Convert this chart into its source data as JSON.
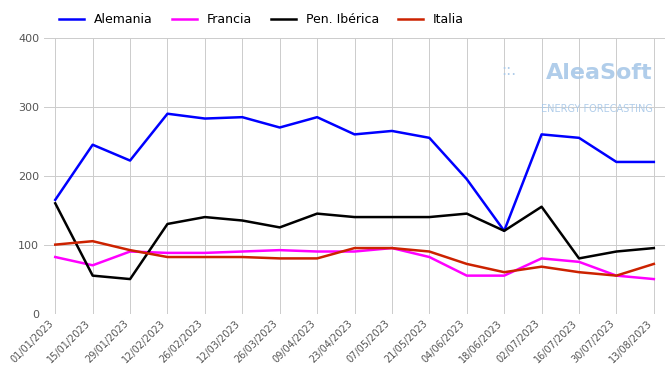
{
  "title": "",
  "legend": [
    "Alemania",
    "Francia",
    "Pen. Ibérica",
    "Italia"
  ],
  "colors": {
    "Alemania": "#0000FF",
    "Francia": "#FF00FF",
    "Pen. Ibérica": "#000000",
    "Italia": "#CC2200"
  },
  "x_labels": [
    "01/01/2023",
    "15/01/2023",
    "29/01/2023",
    "12/02/2023",
    "26/02/2023",
    "12/03/2023",
    "26/03/2023",
    "09/04/2023",
    "23/04/2023",
    "07/05/2023",
    "21/05/2023",
    "04/06/2023",
    "18/06/2023",
    "02/07/2023",
    "16/07/2023",
    "30/07/2023",
    "13/08/2023"
  ],
  "Alemania": [
    165,
    245,
    222,
    290,
    283,
    285,
    270,
    285,
    260,
    265,
    255,
    195,
    120,
    260,
    255,
    220,
    220
  ],
  "Francia": [
    82,
    70,
    90,
    88,
    88,
    90,
    92,
    90,
    90,
    95,
    82,
    55,
    55,
    80,
    75,
    55,
    50
  ],
  "Pen. Ibérica": [
    160,
    55,
    50,
    130,
    140,
    135,
    125,
    145,
    140,
    140,
    140,
    145,
    120,
    155,
    80,
    90,
    95
  ],
  "Italia": [
    100,
    105,
    92,
    82,
    82,
    82,
    80,
    80,
    95,
    95,
    90,
    72,
    60,
    68,
    60,
    55,
    72
  ],
  "ylim": [
    0,
    400
  ],
  "yticks": [
    0,
    100,
    200,
    300,
    400
  ],
  "background_color": "#ffffff",
  "grid_color": "#cccccc",
  "watermark_text": "AleaSoft",
  "watermark_sub": "ENERGY FORECASTING",
  "watermark_dots": "∷∷∷",
  "figsize": [
    6.72,
    3.72
  ],
  "dpi": 100
}
